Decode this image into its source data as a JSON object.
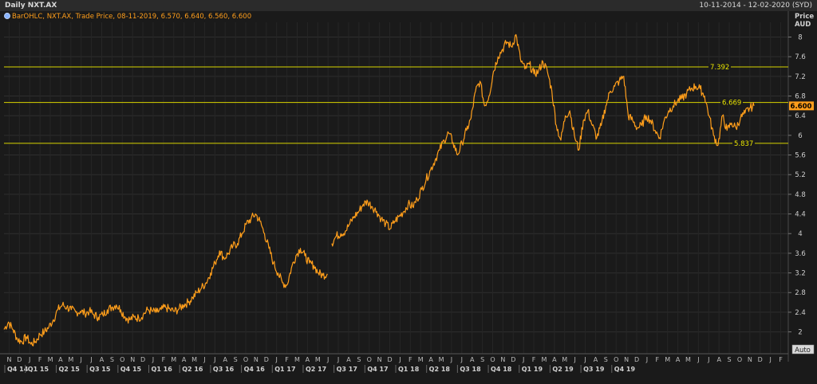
{
  "window": {
    "title": "Daily NXT.AX",
    "date_range": "10-11-2014 - 12-02-2020 (SYD)"
  },
  "chart_data": {
    "type": "line",
    "legend_label": "BarOHLC, NXT.AX, Trade Price, 08-11-2019, 6.570, 6.640, 6.560, 6.600",
    "price_axis_title_1": "Price",
    "price_axis_title_2": "AUD",
    "y_ticks": [
      "8",
      "7.6",
      "7.2",
      "6.8",
      "6.4",
      "6",
      "5.6",
      "5.2",
      "4.8",
      "4.4",
      "4",
      "3.6",
      "3.2",
      "2.8",
      "2.4",
      "2"
    ],
    "ylim": [
      1.75,
      8.3
    ],
    "last_price": "6.600",
    "auto_label": "Auto",
    "grid": true,
    "horizontal_lines": [
      {
        "label": "7.392",
        "value": 7.392
      },
      {
        "label": "6.669",
        "value": 6.669
      },
      {
        "label": "5.837",
        "value": 5.837
      }
    ],
    "x_months": [
      "N",
      "D",
      "J",
      "F",
      "M",
      "A",
      "M",
      "J",
      "J",
      "A",
      "S",
      "O",
      "N",
      "D",
      "J",
      "F",
      "M",
      "A",
      "M",
      "J",
      "J",
      "A",
      "S",
      "O",
      "N",
      "D",
      "J",
      "F",
      "M",
      "A",
      "M",
      "J",
      "J",
      "A",
      "S",
      "O",
      "N",
      "D",
      "J",
      "F",
      "M",
      "A",
      "M",
      "J",
      "J",
      "A",
      "S",
      "O",
      "N",
      "D",
      "J",
      "F",
      "M",
      "A",
      "M",
      "J",
      "J",
      "A",
      "S",
      "O",
      "N",
      "D",
      "J",
      "F",
      "M",
      "A",
      "M",
      "J",
      "J",
      "A",
      "S",
      "O",
      "N",
      "D",
      "J",
      "F"
    ],
    "x_quarters": [
      "Q4 14",
      "Q1 15",
      "Q2 15",
      "Q3 15",
      "Q4 15",
      "Q1 16",
      "Q2 16",
      "Q3 16",
      "Q4 16",
      "Q1 17",
      "Q2 17",
      "Q3 17",
      "Q4 17",
      "Q1 18",
      "Q2 18",
      "Q3 18",
      "Q4 18",
      "Q1 19",
      "Q2 19",
      "Q3 19",
      "Q4 19"
    ],
    "series": [
      {
        "color": "#ff9e1b",
        "segments": [
          [
            [
              0,
              2.05
            ],
            [
              1,
              2.2
            ],
            [
              2,
              2.05
            ],
            [
              3,
              1.85
            ],
            [
              4,
              1.8
            ],
            [
              5,
              1.9
            ],
            [
              6,
              1.75
            ],
            [
              7,
              1.8
            ],
            [
              8,
              1.95
            ],
            [
              9,
              2.0
            ],
            [
              10,
              2.1
            ],
            [
              11,
              2.25
            ],
            [
              12,
              2.45
            ],
            [
              13,
              2.55
            ],
            [
              14,
              2.5
            ],
            [
              15,
              2.45
            ],
            [
              16,
              2.4
            ],
            [
              17,
              2.42
            ],
            [
              18,
              2.38
            ],
            [
              19,
              2.42
            ],
            [
              20,
              2.35
            ],
            [
              21,
              2.3
            ],
            [
              22,
              2.35
            ],
            [
              23,
              2.45
            ],
            [
              24,
              2.5
            ],
            [
              25,
              2.55
            ],
            [
              26,
              2.45
            ],
            [
              27,
              2.3
            ],
            [
              28,
              2.25
            ],
            [
              29,
              2.3
            ],
            [
              30,
              2.28
            ],
            [
              31,
              2.35
            ],
            [
              32,
              2.45
            ],
            [
              33,
              2.42
            ],
            [
              34,
              2.4
            ],
            [
              35,
              2.45
            ],
            [
              36,
              2.5
            ],
            [
              37,
              2.45
            ],
            [
              38,
              2.42
            ],
            [
              39,
              2.47
            ],
            [
              40,
              2.55
            ],
            [
              41,
              2.6
            ],
            [
              42,
              2.7
            ],
            [
              43,
              2.8
            ],
            [
              44,
              2.9
            ],
            [
              45,
              3.0
            ],
            [
              46,
              3.2
            ],
            [
              47,
              3.4
            ],
            [
              48,
              3.65
            ],
            [
              49,
              3.5
            ],
            [
              50,
              3.6
            ],
            [
              51,
              3.75
            ],
            [
              52,
              3.8
            ],
            [
              53,
              4.0
            ],
            [
              54,
              4.2
            ],
            [
              55,
              4.3
            ],
            [
              56,
              4.4
            ],
            [
              57,
              4.25
            ],
            [
              58,
              4.0
            ],
            [
              59,
              3.7
            ],
            [
              60,
              3.4
            ],
            [
              61,
              3.2
            ],
            [
              62,
              3.0
            ],
            [
              63,
              2.95
            ],
            [
              64,
              3.3
            ],
            [
              65,
              3.55
            ],
            [
              66,
              3.7
            ],
            [
              67,
              3.55
            ],
            [
              68,
              3.4
            ],
            [
              69,
              3.35
            ],
            [
              70,
              3.2
            ],
            [
              71,
              3.15
            ],
            [
              72,
              3.18
            ]
          ],
          [
            [
              73,
              3.8
            ],
            [
              74,
              3.95
            ],
            [
              75,
              4.0
            ],
            [
              76,
              4.05
            ],
            [
              77,
              4.2
            ],
            [
              78,
              4.35
            ],
            [
              79,
              4.45
            ],
            [
              80,
              4.6
            ],
            [
              81,
              4.65
            ],
            [
              82,
              4.55
            ],
            [
              83,
              4.45
            ],
            [
              84,
              4.3
            ],
            [
              85,
              4.2
            ],
            [
              86,
              4.1
            ],
            [
              87,
              4.25
            ],
            [
              88,
              4.35
            ],
            [
              89,
              4.45
            ],
            [
              90,
              4.6
            ],
            [
              91,
              4.55
            ],
            [
              92,
              4.7
            ],
            [
              93,
              4.9
            ],
            [
              94,
              5.1
            ],
            [
              95,
              5.3
            ],
            [
              96,
              5.5
            ],
            [
              97,
              5.7
            ],
            [
              98,
              5.9
            ],
            [
              99,
              6.05
            ],
            [
              100,
              5.85
            ],
            [
              101,
              5.6
            ],
            [
              102,
              5.85
            ],
            [
              103,
              6.1
            ],
            [
              104,
              6.35
            ],
            [
              105,
              6.9
            ],
            [
              106,
              7.1
            ],
            [
              107,
              6.6
            ],
            [
              108,
              6.8
            ],
            [
              109,
              7.3
            ],
            [
              110,
              7.6
            ],
            [
              111,
              7.75
            ],
            [
              112,
              7.9
            ],
            [
              113,
              7.8
            ],
            [
              114,
              8.05
            ],
            [
              115,
              7.55
            ],
            [
              116,
              7.35
            ],
            [
              117,
              7.45
            ],
            [
              118,
              7.25
            ],
            [
              119,
              7.3
            ],
            [
              120,
              7.5
            ],
            [
              121,
              7.3
            ],
            [
              122,
              6.9
            ],
            [
              123,
              6.2
            ],
            [
              124,
              5.9
            ],
            [
              125,
              6.4
            ],
            [
              126,
              6.5
            ],
            [
              127,
              6.0
            ],
            [
              128,
              5.7
            ],
            [
              129,
              6.3
            ],
            [
              130,
              6.5
            ],
            [
              131,
              6.2
            ],
            [
              132,
              5.95
            ],
            [
              133,
              6.2
            ],
            [
              134,
              6.6
            ],
            [
              135,
              6.9
            ],
            [
              136,
              7.0
            ],
            [
              137,
              7.1
            ],
            [
              138,
              7.2
            ],
            [
              139,
              6.4
            ],
            [
              140,
              6.3
            ],
            [
              141,
              6.15
            ],
            [
              142,
              6.2
            ],
            [
              143,
              6.4
            ],
            [
              144,
              6.3
            ],
            [
              145,
              6.1
            ],
            [
              146,
              5.95
            ],
            [
              147,
              6.3
            ],
            [
              148,
              6.5
            ],
            [
              149,
              6.6
            ],
            [
              150,
              6.7
            ],
            [
              151,
              6.75
            ],
            [
              152,
              6.85
            ],
            [
              153,
              6.95
            ],
            [
              154,
              7.0
            ],
            [
              155,
              6.95
            ],
            [
              156,
              6.8
            ],
            [
              157,
              6.4
            ],
            [
              158,
              6.0
            ],
            [
              159,
              5.8
            ],
            [
              160,
              6.4
            ],
            [
              161,
              6.1
            ],
            [
              162,
              6.25
            ],
            [
              163,
              6.15
            ],
            [
              164,
              6.35
            ],
            [
              165,
              6.45
            ],
            [
              166,
              6.55
            ],
            [
              167,
              6.6
            ]
          ]
        ]
      }
    ]
  }
}
